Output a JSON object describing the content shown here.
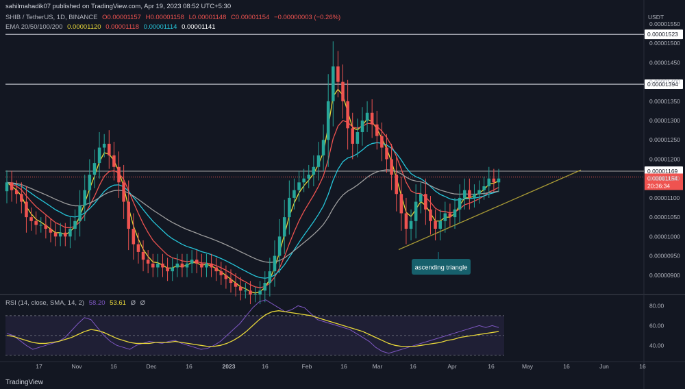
{
  "header": {
    "publisher": "sahilmahadik07 published on TradingView.com, Apr 19, 2023 08:52 UTC+5:30",
    "symbol": "SHIB / TetherUS, 1D, BINANCE",
    "ohlc": {
      "o": "O0.00001157",
      "h": "H0.00001158",
      "l": "L0.00001148",
      "c": "C0.00001154",
      "change": "−0.00000003 (−0.26%)"
    },
    "ema_label": "EMA 20/50/100/200",
    "ema_values": [
      "0.00001120",
      "0.00001118",
      "0.00001114",
      "0.00001141"
    ],
    "rsi_label": "RSI (14, close, SMA, 14, 2)",
    "rsi_values": [
      "58.20",
      "53.61",
      "Ø",
      "Ø"
    ]
  },
  "currency": "USDT",
  "footer": "TradingView",
  "colors": {
    "background": "#131722",
    "up": "#26a69a",
    "down": "#ef5350",
    "ema20": "#e9d83a",
    "ema50": "#ef5350",
    "ema100": "#26c6da",
    "ema200": "#9e9e9e",
    "rsi": "#7e57c2",
    "rsi_ma": "#e9d83a",
    "trendline": "#a89a35",
    "annotation_bg": "#17606c"
  },
  "chart_data": [
    {
      "type": "candlestick",
      "title": "SHIB / TetherUS, 1D, BINANCE",
      "x_ticks": [
        "17",
        "Nov",
        "16",
        "Dec",
        "16",
        "2023",
        "16",
        "Feb",
        "16",
        "Mar",
        "16",
        "Apr",
        "16",
        "May",
        "16",
        "Jun",
        "16"
      ],
      "y_ticks": [
        "0.00001550",
        "0.00001500",
        "0.00001450",
        "0.00001400",
        "0.00001350",
        "0.00001300",
        "0.00001250",
        "0.00001200",
        "0.00001150",
        "0.00001100",
        "0.00001050",
        "0.00001000",
        "0.00000950",
        "0.00000900"
      ],
      "ylim": [
        8.5e-06,
        1.58e-05
      ],
      "horizontal_lines": [
        {
          "label": "0.00001523",
          "value": 1.523e-05
        },
        {
          "label": "0.00001394",
          "value": 1.394e-05
        },
        {
          "label": "0.00001169",
          "value": 1.169e-05
        }
      ],
      "last_price": {
        "label": "0.00001154",
        "countdown": "20:36:34",
        "value": 1.154e-05
      },
      "annotation": "ascending triangle",
      "candles_close": [
        1.14e-05,
        1.12e-05,
        1.11e-05,
        1.09e-05,
        1.05e-05,
        1.04e-05,
        1.03e-05,
        1.03e-05,
        1.02e-05,
        1.01e-05,
        1e-05,
        1.01e-05,
        1e-05,
        1.02e-05,
        1.04e-05,
        1.08e-05,
        1.12e-05,
        1.16e-05,
        1.19e-05,
        1.23e-05,
        1.24e-05,
        1.21e-05,
        1.18e-05,
        1.14e-05,
        1.09e-05,
        1.02e-05,
        9.8e-06,
        9.6e-06,
        9.4e-06,
        9.3e-06,
        9.2e-06,
        9.3e-06,
        9.2e-06,
        9.1e-06,
        9.2e-06,
        9.3e-06,
        9.2e-06,
        9.3e-06,
        9.4e-06,
        9.3e-06,
        9.2e-06,
        9.3e-06,
        9.2e-06,
        9.1e-06,
        9e-06,
        8.9e-06,
        8.8e-06,
        8.7e-06,
        8.6e-06,
        8.6e-06,
        8.5e-06,
        8.5e-06,
        8.6e-06,
        8.8e-06,
        9.1e-06,
        9.5e-06,
        1e-05,
        1.05e-05,
        1.1e-05,
        1.12e-05,
        1.14e-05,
        1.15e-05,
        1.16e-05,
        1.18e-05,
        1.21e-05,
        1.25e-05,
        1.35e-05,
        1.44e-05,
        1.4e-05,
        1.35e-05,
        1.28e-05,
        1.24e-05,
        1.27e-05,
        1.3e-05,
        1.32e-05,
        1.29e-05,
        1.26e-05,
        1.23e-05,
        1.2e-05,
        1.16e-05,
        1.11e-05,
        1.06e-05,
        1.02e-05,
        1.04e-05,
        1.09e-05,
        1.11e-05,
        1.07e-05,
        1.04e-05,
        1.02e-05,
        1.04e-05,
        1.06e-05,
        1.05e-05,
        1.07e-05,
        1.1e-05,
        1.12e-05,
        1.1e-05,
        1.11e-05,
        1.12e-05,
        1.13e-05,
        1.15e-05,
        1.14e-05,
        1.15e-05
      ]
    },
    {
      "type": "line",
      "title": "RSI (14, close, SMA, 14, 2)",
      "y_ticks": [
        "80.00",
        "60.00",
        "40.00"
      ],
      "ylim": [
        25,
        90
      ],
      "band": [
        30,
        70
      ],
      "series": [
        {
          "name": "RSI",
          "values": [
            52,
            50,
            45,
            40,
            36,
            38,
            40,
            42,
            44,
            48,
            55,
            62,
            68,
            66,
            58,
            50,
            44,
            40,
            38,
            36,
            40,
            42,
            44,
            43,
            42,
            44,
            45,
            42,
            40,
            38,
            36,
            37,
            40,
            44,
            50,
            56,
            62,
            70,
            78,
            84,
            86,
            82,
            78,
            74,
            76,
            80,
            78,
            72,
            66,
            64,
            62,
            60,
            58,
            56,
            52,
            48,
            44,
            38,
            34,
            32,
            34,
            36,
            38,
            40,
            42,
            44,
            46,
            48,
            50,
            52,
            54,
            56,
            58,
            60,
            58,
            60,
            58
          ]
        },
        {
          "name": "SMA",
          "values": [
            50,
            49,
            47,
            45,
            43,
            42,
            42,
            43,
            44,
            46,
            48,
            51,
            54,
            56,
            55,
            53,
            50,
            47,
            45,
            43,
            42,
            42,
            42,
            43,
            43,
            43,
            44,
            43,
            42,
            41,
            40,
            39,
            39,
            40,
            42,
            45,
            49,
            54,
            60,
            66,
            71,
            74,
            75,
            74,
            73,
            72,
            71,
            70,
            68,
            66,
            64,
            62,
            60,
            58,
            56,
            54,
            51,
            48,
            45,
            42,
            40,
            39,
            39,
            39,
            40,
            41,
            42,
            43,
            45,
            46,
            48,
            49,
            50,
            51,
            52,
            53,
            54
          ]
        }
      ]
    }
  ]
}
